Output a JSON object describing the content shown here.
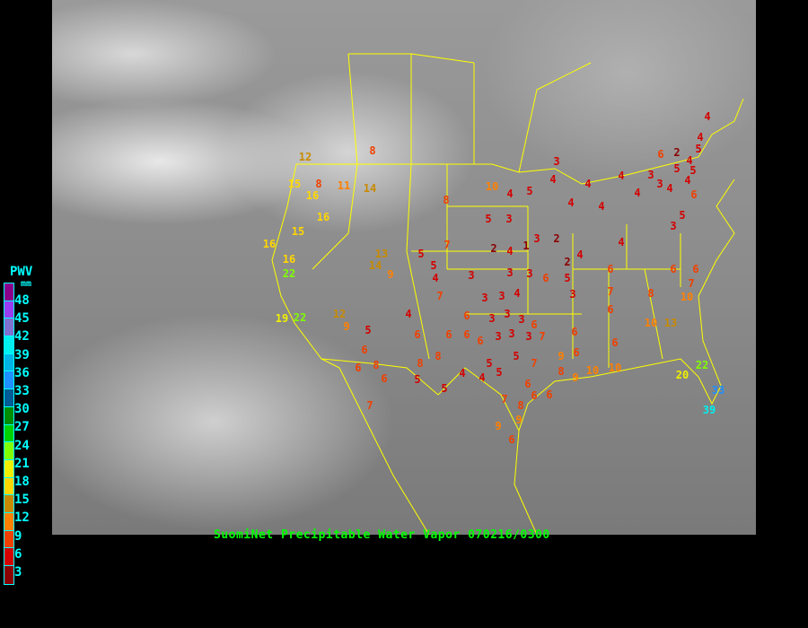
{
  "caption": "SuomiNet Precipitable Water Vapor 070216/0300",
  "legend": {
    "title": "PWV",
    "unit": "mm",
    "labels": [
      "48",
      "45",
      "42",
      "39",
      "36",
      "33",
      "30",
      "27",
      "24",
      "21",
      "18",
      "15",
      "12",
      "9",
      "6",
      "3"
    ],
    "colors_top_to_bottom": [
      "#8b008b",
      "#9a3cf0",
      "#8070d0",
      "#00f0f0",
      "#00b4e6",
      "#1e90ff",
      "#005c96",
      "#008c00",
      "#00d200",
      "#80ff00",
      "#f0f000",
      "#ffd700",
      "#c88a00",
      "#ff8000",
      "#f04000",
      "#d40000",
      "#8b0000"
    ]
  },
  "map": {
    "background": "GOES infrared satellite imagery",
    "border_color": "#ffff00"
  },
  "stations": [
    12,
    15,
    8,
    16,
    11,
    14,
    8,
    16,
    16,
    15,
    16,
    22,
    13,
    14,
    9,
    8,
    10,
    4,
    5,
    5,
    3,
    7,
    5,
    5,
    4,
    2,
    4,
    1,
    3,
    2,
    3,
    4,
    4,
    4,
    4,
    4,
    3,
    4,
    3,
    4,
    6,
    2,
    4,
    5,
    4,
    4,
    5,
    5,
    4,
    6,
    5,
    3,
    3,
    3,
    3,
    6,
    5,
    2,
    4,
    4,
    6,
    7,
    3,
    7,
    4,
    6,
    3,
    3,
    4,
    3,
    3,
    3,
    6,
    3,
    3,
    3,
    7,
    6,
    6,
    6,
    6,
    7,
    8,
    10,
    10,
    13,
    6,
    6,
    9,
    8,
    9,
    10,
    10,
    5,
    6,
    6,
    6,
    6,
    8,
    6,
    8,
    6,
    8,
    5,
    5,
    4,
    5,
    5,
    4,
    5,
    7,
    6,
    6,
    6,
    7,
    8,
    9,
    9,
    6,
    6,
    7,
    12,
    9,
    19,
    22,
    22,
    20,
    33,
    39
  ]
}
